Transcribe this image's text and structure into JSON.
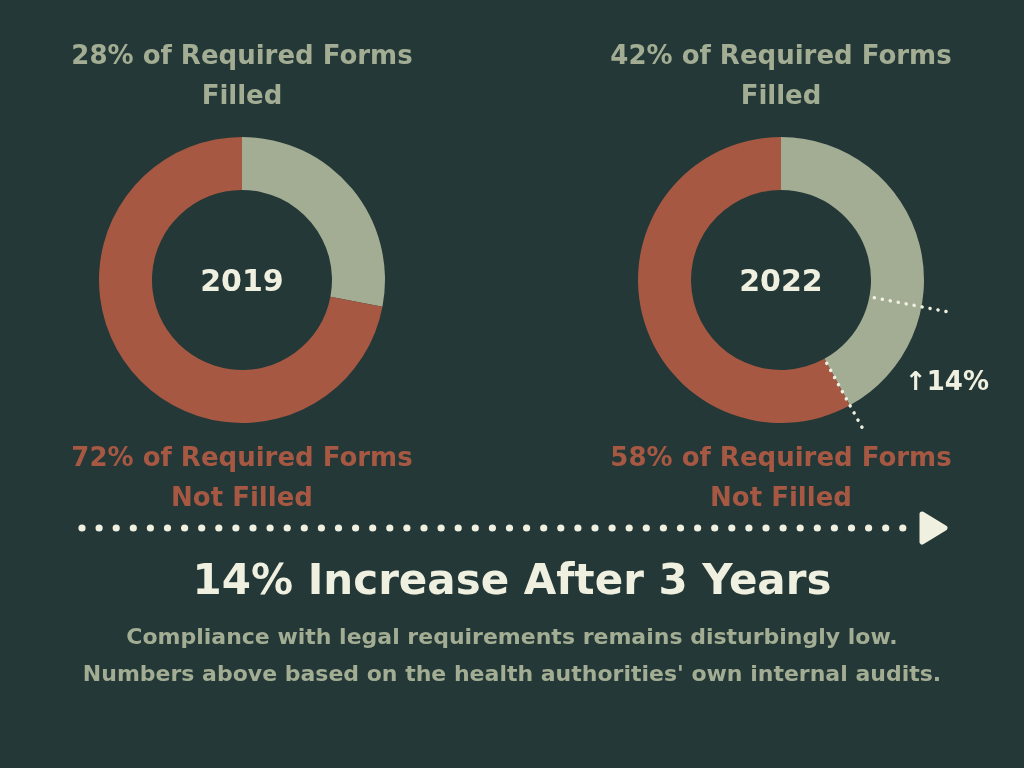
{
  "chart_data": [
    {
      "type": "donut",
      "title": "2019",
      "categories": [
        "28% of Required Forms Filled",
        "72% of Required Forms Not Filled"
      ],
      "values": [
        28,
        72
      ],
      "colors": [
        "#a3ad93",
        "#a65843"
      ]
    },
    {
      "type": "donut",
      "title": "2022",
      "categories": [
        "42% of Required Forms Filled",
        "58% of Required Forms Not Filled"
      ],
      "values": [
        42,
        58
      ],
      "colors": [
        "#a3ad93",
        "#a65843"
      ],
      "annotations": [
        "↑14%"
      ]
    },
    {
      "type": "other",
      "title": "14% Increase After 3 Years",
      "annotations": [
        "Compliance with legal requirements remains disturbingly low.",
        "Numbers above based on the health authorities' own internal audits."
      ]
    }
  ]
}
